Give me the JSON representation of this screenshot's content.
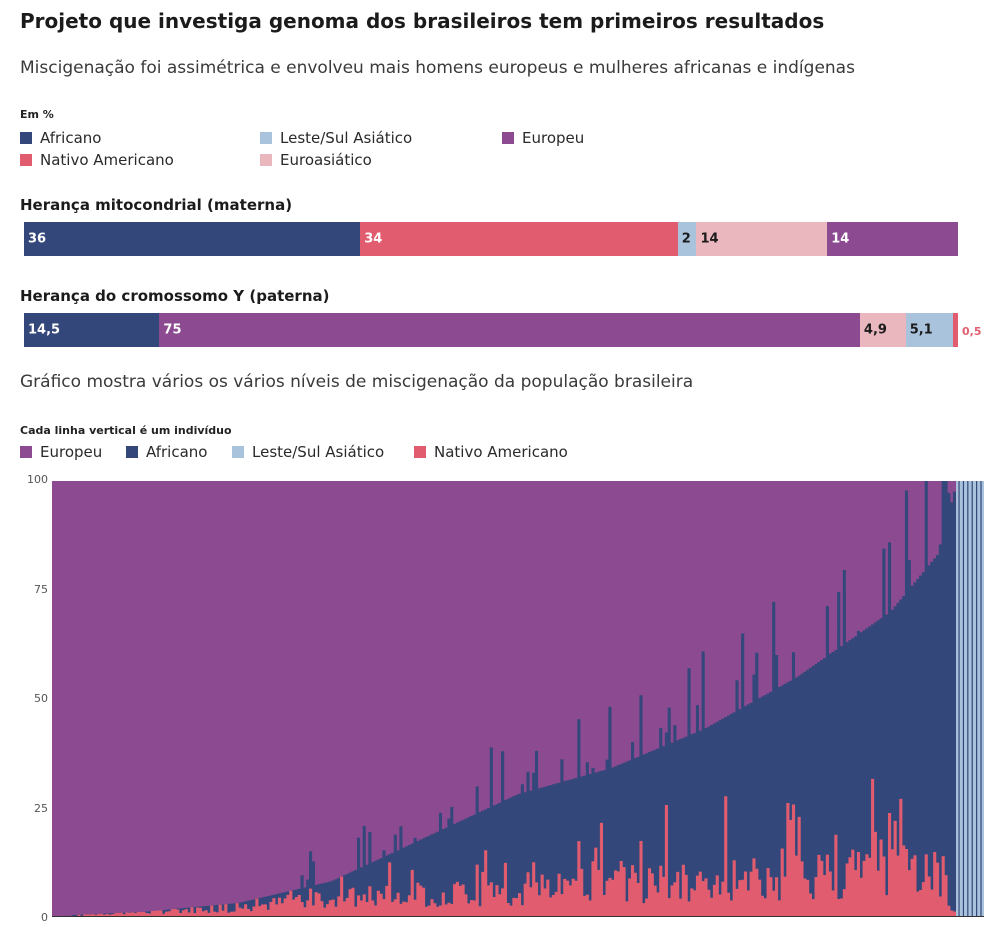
{
  "title": "Projeto que investiga genoma dos brasileiros tem primeiros resultados",
  "subtitle": "Miscigenação foi assimétrica e envolveu mais homens europeus e mulheres africanas e indígenas",
  "unit_label": "Em %",
  "legend_top": [
    {
      "label": "Africano",
      "color": "#34477a"
    },
    {
      "label": "Leste/Sul Asiático",
      "color": "#a9c3dc"
    },
    {
      "label": "Europeu",
      "color": "#8c4b91"
    },
    {
      "label": "Nativo Americano",
      "color": "#e05c6e"
    },
    {
      "label": "Euroasiático",
      "color": "#eab7bf"
    }
  ],
  "section2_title": "Gráfico mostra vários os vários níveis de miscigenação da população brasileira",
  "bottom_caption": "Cada linha vertical é um indivíduo",
  "legend_bottom": [
    {
      "label": "Europeu",
      "color": "#8c4b91"
    },
    {
      "label": "Africano",
      "color": "#34477a"
    },
    {
      "label": "Leste/Sul Asiático",
      "color": "#a9c3dc"
    },
    {
      "label": "Nativo Americano",
      "color": "#e05c6e"
    }
  ],
  "chart_data": [
    {
      "type": "bar",
      "orientation": "horizontal-stacked",
      "title": "Herança mitocondrial (materna)",
      "segments": [
        {
          "name": "Africano",
          "value": 36,
          "label": "36",
          "color": "#34477a",
          "label_color": "#ffffff"
        },
        {
          "name": "Nativo Americano",
          "value": 34,
          "label": "34",
          "color": "#e05c6e",
          "label_color": "#ffffff"
        },
        {
          "name": "Leste/Sul Asiático",
          "value": 2,
          "label": "2",
          "color": "#a9c3dc",
          "label_color": "#1b1b1b"
        },
        {
          "name": "Euroasiático",
          "value": 14,
          "label": "14",
          "color": "#eab7bf",
          "label_color": "#1b1b1b"
        },
        {
          "name": "Europeu",
          "value": 14,
          "label": "14",
          "color": "#8c4b91",
          "label_color": "#ffffff"
        }
      ]
    },
    {
      "type": "bar",
      "orientation": "horizontal-stacked",
      "title": "Herança do cromossomo Y (paterna)",
      "segments": [
        {
          "name": "Africano",
          "value": 14.5,
          "label": "14,5",
          "color": "#34477a",
          "label_color": "#ffffff"
        },
        {
          "name": "Europeu",
          "value": 75,
          "label": "75",
          "color": "#8c4b91",
          "label_color": "#ffffff"
        },
        {
          "name": "Euroasiático",
          "value": 4.9,
          "label": "4,9",
          "color": "#eab7bf",
          "label_color": "#1b1b1b"
        },
        {
          "name": "Leste/Sul Asiático",
          "value": 5.1,
          "label": "5,1",
          "color": "#a9c3dc",
          "label_color": "#1b1b1b"
        },
        {
          "name": "Nativo Americano",
          "value": 0.5,
          "label": "0,5",
          "color": "#e05c6e",
          "label_color": "#e05c6e",
          "label_outside": true
        }
      ]
    },
    {
      "type": "area",
      "stacked": true,
      "ylim": [
        0,
        100
      ],
      "yticks": [
        "0",
        "25",
        "50",
        "75",
        "100"
      ],
      "x_description": "individuals sorted by European ancestry",
      "series": [
        {
          "name": "Nativo Americano",
          "color": "#e05c6e"
        },
        {
          "name": "Africano",
          "color": "#34477a"
        },
        {
          "name": "Europeu",
          "color": "#8c4b91"
        },
        {
          "name": "Leste/Sul Asiático",
          "color": "#a9c3dc"
        }
      ],
      "profile_fraction": [
        0,
        0.1,
        0.2,
        0.3,
        0.4,
        0.5,
        0.6,
        0.7,
        0.8,
        0.9,
        0.95,
        0.97,
        1.0
      ],
      "non_european_pct": [
        0,
        1,
        3,
        8,
        18,
        28,
        34,
        43,
        55,
        70,
        83,
        99,
        100
      ],
      "native_american_pct": [
        0,
        1,
        2,
        4,
        5,
        6,
        7,
        8,
        9,
        10,
        11,
        0,
        0
      ],
      "asian_block_start_fraction": 0.97
    }
  ]
}
